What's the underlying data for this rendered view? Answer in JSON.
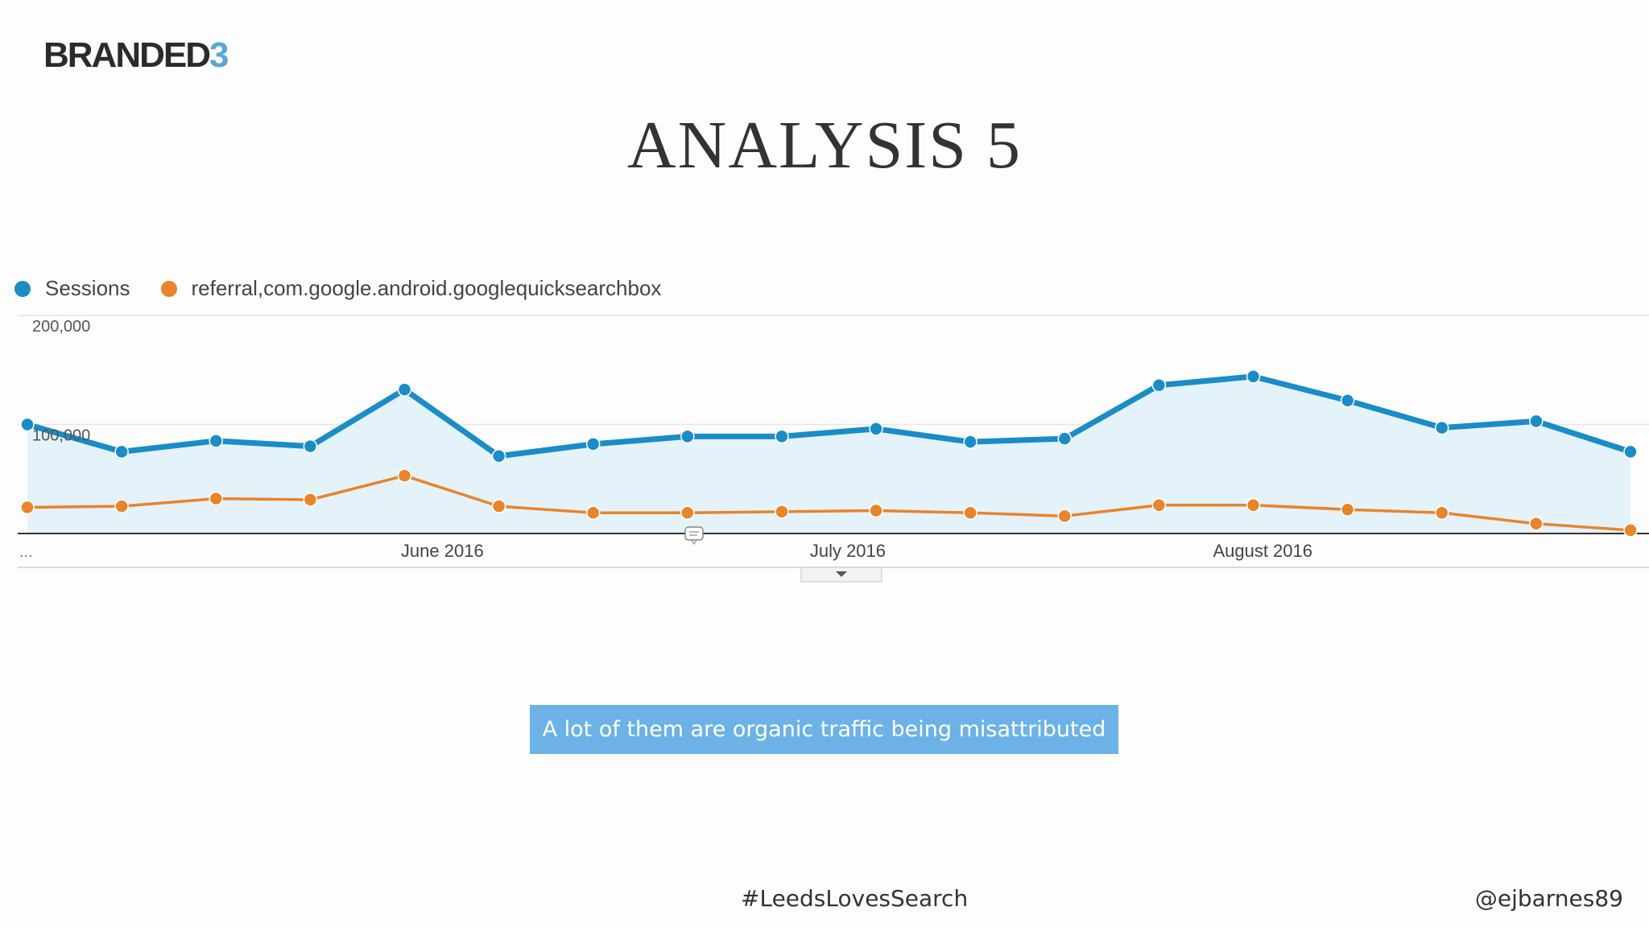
{
  "slide": {
    "logo": {
      "main": "BRANDED",
      "accent": "3"
    },
    "title": "ANALYSIS 5",
    "caption": "A lot of them are organic traffic being misattributed",
    "hashtag": "#LeedsLovesSearch",
    "handle": "@ejbarnes89"
  },
  "colors": {
    "sessions": "#1a8cc8",
    "referral": "#e8842a",
    "area_fill": "#e4f2fa",
    "accent": "#5aa5d8"
  },
  "chart_data": {
    "type": "line",
    "ylim": [
      0,
      200000
    ],
    "y_ticks": [
      {
        "value": 200000,
        "label": "200,000"
      },
      {
        "value": 100000,
        "label": "100,000"
      }
    ],
    "x_count": 18,
    "x_labels": [
      {
        "index": 4.4,
        "label": "June 2016"
      },
      {
        "index": 8.7,
        "label": "July 2016"
      },
      {
        "index": 13.1,
        "label": "August 2016"
      }
    ],
    "leading_marker": "...",
    "series": [
      {
        "name": "Sessions",
        "values": [
          100000,
          75000,
          85000,
          80000,
          132000,
          71000,
          82000,
          89000,
          89000,
          96000,
          84000,
          87000,
          136000,
          144000,
          122000,
          97000,
          103000,
          75000
        ]
      },
      {
        "name": "referral,com.google.android.googlequicksearchbox",
        "values": [
          24000,
          25000,
          32000,
          31000,
          53000,
          25000,
          19000,
          19000,
          20000,
          21000,
          19000,
          16000,
          26000,
          26000,
          22000,
          19000,
          9000,
          3000
        ]
      }
    ]
  }
}
